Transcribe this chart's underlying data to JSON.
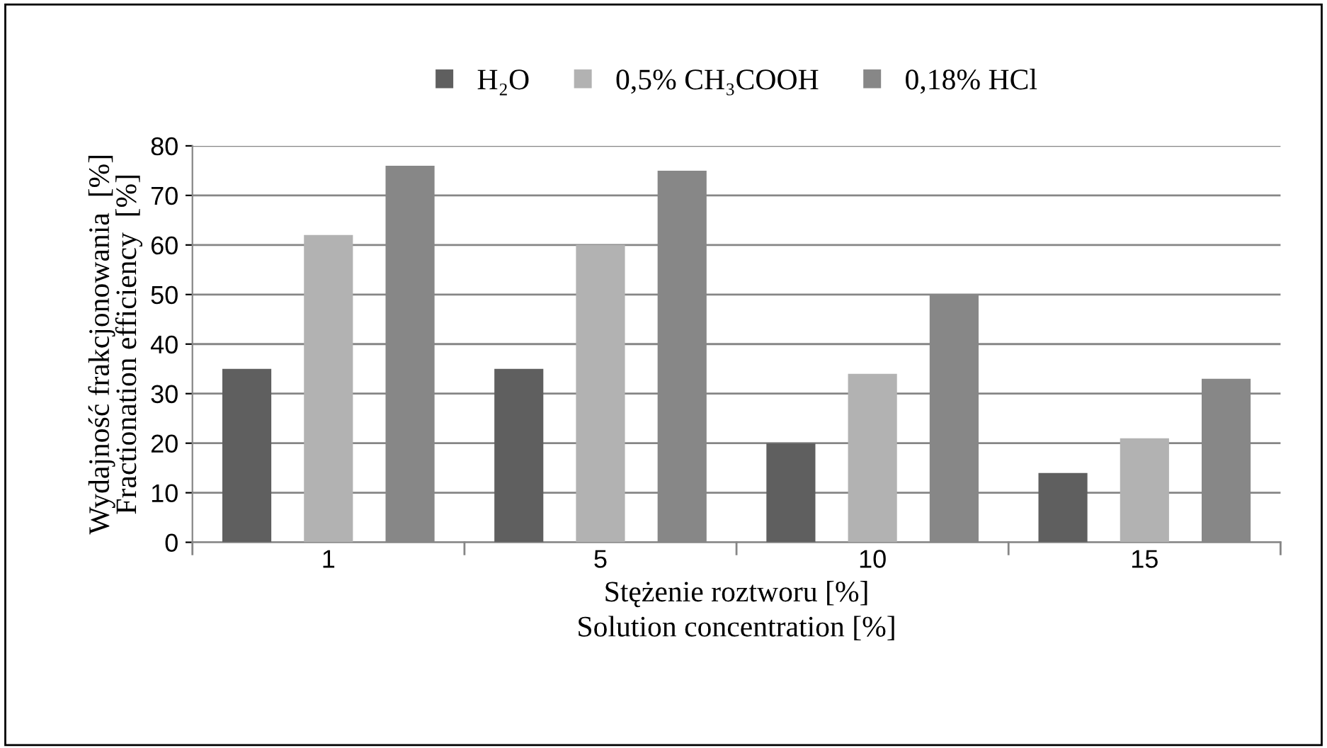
{
  "chart_data": {
    "type": "bar",
    "categories": [
      "1",
      "5",
      "10",
      "15"
    ],
    "series": [
      {
        "name": "H₂O",
        "color": "#5f5f5f",
        "values": [
          35,
          35,
          20,
          14
        ]
      },
      {
        "name": "0,5% CH₃COOH",
        "color": "#b2b2b2",
        "values": [
          62,
          60,
          34,
          21
        ]
      },
      {
        "name": "0,18% HCl",
        "color": "#878787",
        "values": [
          76,
          75,
          50,
          33
        ]
      }
    ],
    "xlabel": "Stężenie roztworu [%]\nSolution concentration [%]",
    "ylabel": "Wydajność frakcjonowania  [%]\nFractionation efficiency  [%]",
    "ylim": [
      0,
      80
    ],
    "yticks": [
      0,
      10,
      20,
      30,
      40,
      50,
      60,
      70,
      80
    ],
    "grid": "y",
    "legend": "top"
  }
}
